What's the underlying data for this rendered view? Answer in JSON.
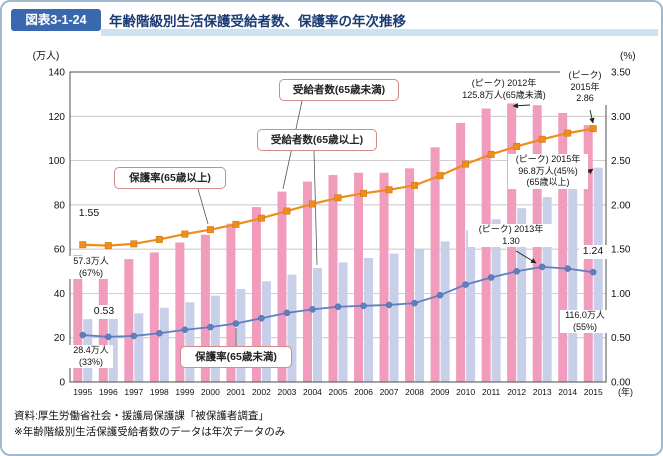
{
  "header": {
    "badge": "図表3-1-24",
    "title": "年齢階級別生活保護受給者数、保護率の年次推移"
  },
  "footer": {
    "source": "資料:厚生労働省社会・援護局保護課「被保護者調査」",
    "note": "※年齢階級別生活保護受給者数のデータは年次データのみ"
  },
  "colors": {
    "bar_under65": "#f19cbd",
    "bar_over65": "#c8cfe9",
    "line_rate_over65": "#ee8d1a",
    "line_rate_under65": "#5e80c0",
    "badge_bg": "#3968ae",
    "title_text": "#1a3a73",
    "title_band": "#cce3f2",
    "callout_border": "#d08a8a",
    "card_border": "#a0b9ce"
  },
  "callouts": {
    "recipients_under65": "受給者数(65歳未満)",
    "recipients_over65": "受給者数(65歳以上)",
    "rate_over65": "保護率(65歳以上)",
    "rate_under65": "保護率(65歳未満)"
  },
  "annotations": {
    "rate_over65_start": "1.55",
    "under65_1995_line1": "57.3万人",
    "under65_1995_line2": "(67%)",
    "rate_under65_start": "0.53",
    "over65_1995_line1": "28.4万人",
    "over65_1995_line2": "(33%)",
    "peak_under65_line1": "(ピーク) 2012年",
    "peak_under65_line2": "125.8万人(65歳未満)",
    "peak_rate_over65_line1": "(ピーク)",
    "peak_rate_over65_line2": "2015年",
    "peak_rate_over65_line3": "2.86",
    "peak_over65_line1": "(ピーク) 2015年",
    "peak_over65_line2": "96.8万人(45%)",
    "peak_over65_line3": "(65歳以上)",
    "peak_rate_under65_line1": "(ピーク) 2013年",
    "peak_rate_under65_line2": "1.30",
    "rate_under65_end": "1.24",
    "under65_2015_line1": "116.0万人",
    "under65_2015_line2": "(55%)"
  },
  "chart_data": {
    "type": "bar",
    "subtype": "grouped bars + two lines on secondary axis",
    "title": "年齢階級別生活保護受給者数、保護率の年次推移",
    "categories": [
      "1995",
      "1996",
      "1997",
      "1998",
      "1999",
      "2000",
      "2001",
      "2002",
      "2003",
      "2004",
      "2005",
      "2006",
      "2007",
      "2008",
      "2009",
      "2010",
      "2011",
      "2012",
      "2013",
      "2014",
      "2015"
    ],
    "x_suffix": "(年)",
    "left_axis": {
      "label": "(万人)",
      "min": 0,
      "max": 140,
      "step": 20
    },
    "right_axis": {
      "label": "(%)",
      "min": 0,
      "max": 3.5,
      "step": 0.5
    },
    "grid": true,
    "series": [
      {
        "name": "受給者数(65歳未満)",
        "kind": "bar",
        "axis": "left",
        "unit": "万人",
        "color": "#f19cbd",
        "values": [
          57.3,
          55.0,
          55.5,
          58.5,
          63.0,
          66.5,
          71.5,
          79.0,
          86.0,
          90.5,
          93.5,
          94.5,
          94.5,
          96.5,
          106.0,
          117.0,
          123.5,
          125.8,
          125.0,
          121.5,
          116.0
        ]
      },
      {
        "name": "受給者数(65歳以上)",
        "kind": "bar",
        "axis": "left",
        "unit": "万人",
        "color": "#c8cfe9",
        "values": [
          28.4,
          29.5,
          31.0,
          33.5,
          36.0,
          39.0,
          42.0,
          45.5,
          48.5,
          51.5,
          54.0,
          56.0,
          58.0,
          60.0,
          63.5,
          68.5,
          73.5,
          78.5,
          83.5,
          89.0,
          96.8
        ]
      },
      {
        "name": "保護率(65歳以上)",
        "kind": "line",
        "axis": "right",
        "unit": "%",
        "marker": "square",
        "color": "#ee8d1a",
        "values": [
          1.55,
          1.54,
          1.56,
          1.61,
          1.67,
          1.72,
          1.78,
          1.85,
          1.93,
          2.01,
          2.08,
          2.13,
          2.17,
          2.22,
          2.33,
          2.46,
          2.57,
          2.66,
          2.74,
          2.81,
          2.86
        ]
      },
      {
        "name": "保護率(65歳未満)",
        "kind": "line",
        "axis": "right",
        "unit": "%",
        "marker": "circle",
        "color": "#5e80c0",
        "values": [
          0.53,
          0.51,
          0.52,
          0.55,
          0.59,
          0.62,
          0.66,
          0.72,
          0.78,
          0.82,
          0.85,
          0.86,
          0.87,
          0.89,
          0.98,
          1.1,
          1.18,
          1.25,
          1.3,
          1.28,
          1.24
        ]
      }
    ],
    "notable_points": {
      "peak_under65_recipients": {
        "year": "2012",
        "value": 125.8
      },
      "peak_over65_recipients": {
        "year": "2015",
        "value": 96.8
      },
      "peak_rate_over65": {
        "year": "2015",
        "value": 2.86
      },
      "peak_rate_under65": {
        "year": "2013",
        "value": 1.3
      }
    }
  }
}
